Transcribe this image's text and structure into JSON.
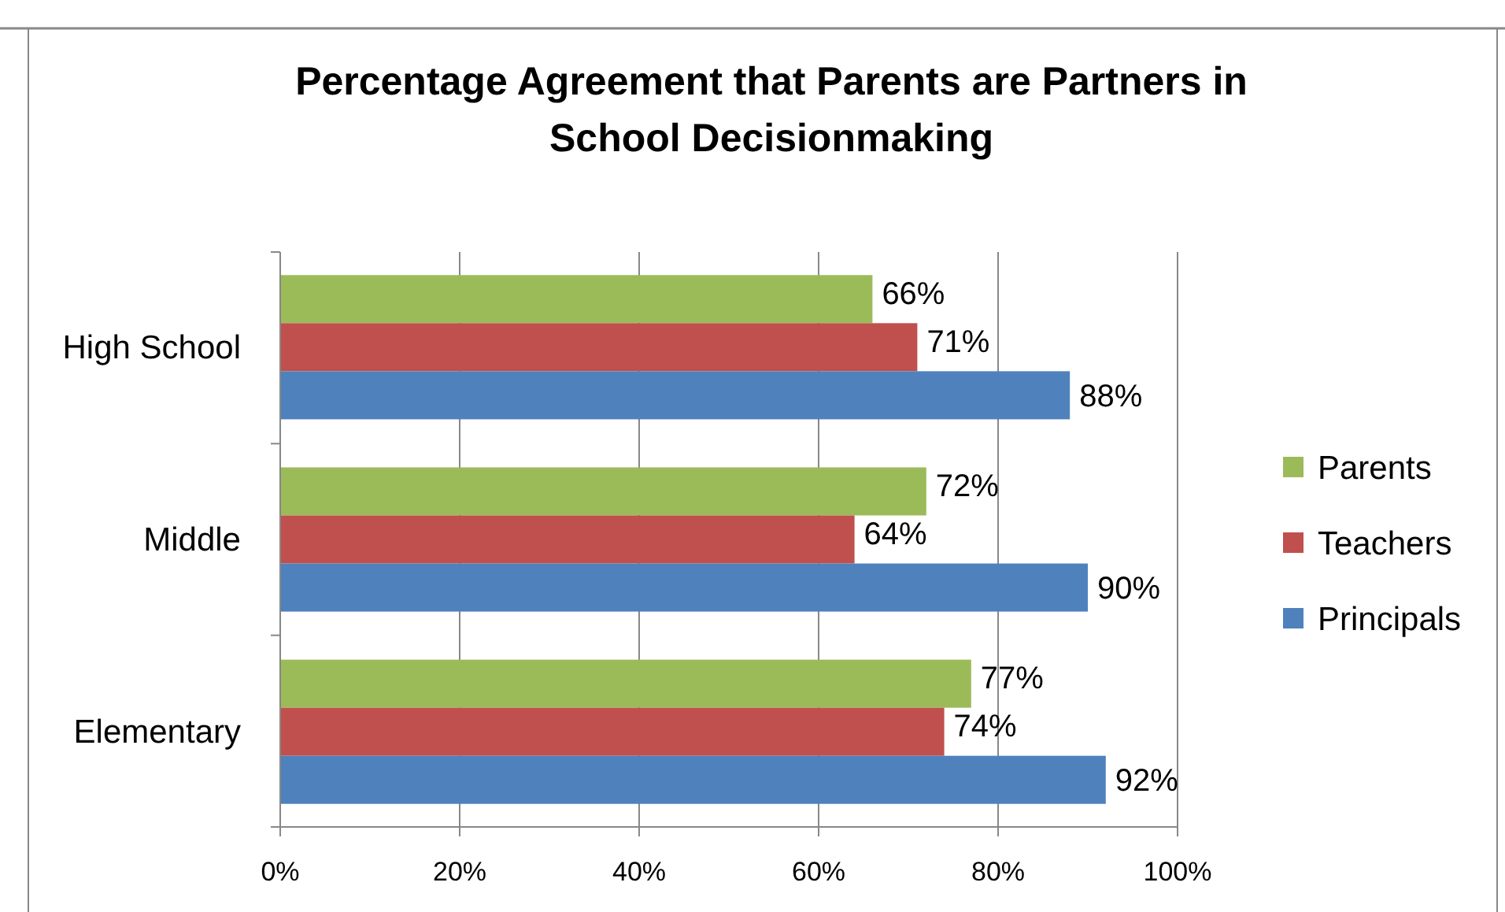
{
  "chart_data": {
    "type": "bar",
    "orientation": "horizontal",
    "title": "Percentage Agreement that Parents are Partners in School Decisionmaking",
    "categories": [
      "High School",
      "Middle",
      "Elementary"
    ],
    "series": [
      {
        "name": "Parents",
        "color": "#9bbb59",
        "values": [
          66,
          72,
          77
        ],
        "value_labels": [
          "66%",
          "72%",
          "77%"
        ]
      },
      {
        "name": "Teachers",
        "color": "#c0504d",
        "values": [
          71,
          64,
          74
        ],
        "value_labels": [
          "71%",
          "64%",
          "74%"
        ]
      },
      {
        "name": "Principals",
        "color": "#4f81bd",
        "values": [
          88,
          90,
          92
        ],
        "value_labels": [
          "88%",
          "90%",
          "92%"
        ]
      }
    ],
    "xlim": [
      0,
      100
    ],
    "xticks": [
      {
        "value": 0,
        "label": "0%"
      },
      {
        "value": 20,
        "label": "20%"
      },
      {
        "value": 40,
        "label": "40%"
      },
      {
        "value": 60,
        "label": "60%"
      },
      {
        "value": 80,
        "label": "80%"
      },
      {
        "value": 100,
        "label": "100%"
      }
    ],
    "grid": "x",
    "legend": "right"
  }
}
